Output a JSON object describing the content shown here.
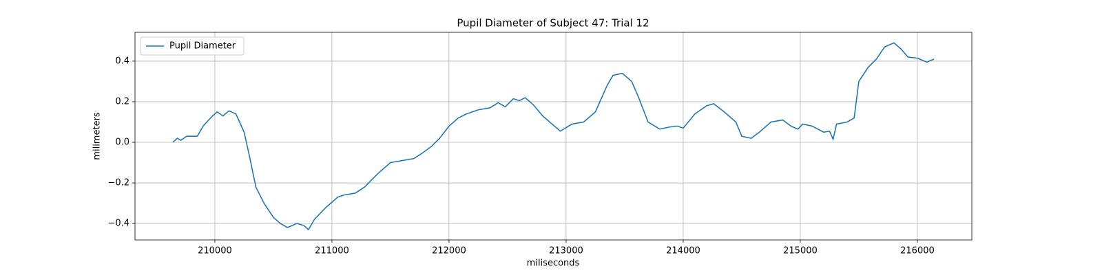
{
  "chart_data": {
    "type": "line",
    "title": "Pupil Diameter of Subject 47: Trial 12",
    "xlabel": "miliseconds",
    "ylabel": "milimeters",
    "x": [
      209641,
      209680,
      209710,
      209760,
      209850,
      209900,
      209980,
      210020,
      210070,
      210120,
      210180,
      210250,
      210300,
      210350,
      210420,
      210500,
      210560,
      210620,
      210700,
      210760,
      210800,
      210850,
      210950,
      211050,
      211100,
      211200,
      211280,
      211330,
      211400,
      211500,
      211600,
      211700,
      211780,
      211850,
      211920,
      212000,
      212080,
      212150,
      212250,
      212350,
      212420,
      212480,
      212550,
      212600,
      212650,
      212720,
      212800,
      212880,
      212950,
      213050,
      213150,
      213250,
      213350,
      213400,
      213480,
      213560,
      213620,
      213700,
      213800,
      213880,
      213950,
      214000,
      214100,
      214200,
      214260,
      214350,
      214450,
      214500,
      214580,
      214650,
      214750,
      214850,
      214920,
      214980,
      215020,
      215100,
      215200,
      215250,
      215280,
      215310,
      215400,
      215460,
      215500,
      215580,
      215650,
      215720,
      215800,
      215860,
      215920,
      216000,
      216080,
      216141
    ],
    "series": [
      {
        "name": "Pupil Diameter",
        "color": "#1f77b4",
        "values": [
          0.0,
          0.02,
          0.01,
          0.03,
          0.03,
          0.08,
          0.13,
          0.15,
          0.13,
          0.155,
          0.14,
          0.05,
          -0.08,
          -0.22,
          -0.3,
          -0.37,
          -0.4,
          -0.42,
          -0.4,
          -0.41,
          -0.43,
          -0.38,
          -0.32,
          -0.27,
          -0.26,
          -0.25,
          -0.22,
          -0.19,
          -0.15,
          -0.1,
          -0.09,
          -0.08,
          -0.05,
          -0.02,
          0.02,
          0.08,
          0.12,
          0.14,
          0.16,
          0.17,
          0.195,
          0.175,
          0.215,
          0.205,
          0.22,
          0.185,
          0.13,
          0.09,
          0.055,
          0.09,
          0.1,
          0.15,
          0.28,
          0.33,
          0.34,
          0.3,
          0.22,
          0.1,
          0.065,
          0.075,
          0.08,
          0.07,
          0.14,
          0.18,
          0.19,
          0.15,
          0.1,
          0.03,
          0.02,
          0.05,
          0.1,
          0.11,
          0.08,
          0.065,
          0.09,
          0.08,
          0.05,
          0.055,
          0.015,
          0.09,
          0.1,
          0.12,
          0.3,
          0.37,
          0.41,
          0.47,
          0.49,
          0.46,
          0.42,
          0.415,
          0.395,
          0.41
        ]
      }
    ],
    "xlim": [
      209318,
      216465
    ],
    "xticks": [
      210000,
      211000,
      212000,
      213000,
      214000,
      215000,
      216000
    ],
    "ylim": [
      -0.481,
      0.542
    ],
    "yticks": [
      {
        "value": -0.4,
        "label": "−0.4"
      },
      {
        "value": -0.2,
        "label": "−0.2"
      },
      {
        "value": 0,
        "label": "0.0"
      },
      0.2,
      0.4
    ],
    "grid": true,
    "legend": "upper left"
  }
}
